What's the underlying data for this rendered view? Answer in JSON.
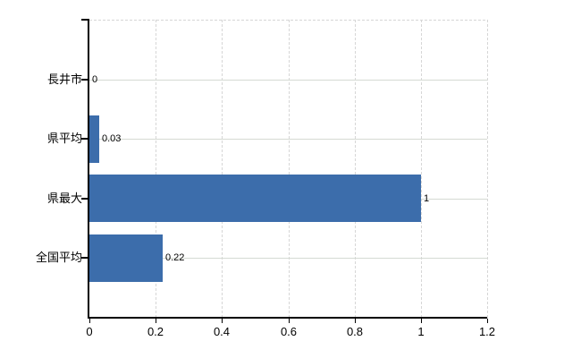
{
  "chart_data": {
    "type": "bar",
    "orientation": "horizontal",
    "title": "",
    "xlabel": "",
    "ylabel": "",
    "categories": [
      "長井市",
      "県平均",
      "県最大",
      "全国平均"
    ],
    "values": [
      0,
      0.03,
      1,
      0.22
    ],
    "value_labels": [
      "0",
      "0.03",
      "1",
      "0.22"
    ],
    "xlim": [
      0,
      1.2
    ],
    "xticks": [
      0,
      0.2,
      0.4,
      0.6,
      0.8,
      1,
      1.2
    ],
    "xtick_labels": [
      "0",
      "0.2",
      "0.4",
      "0.6",
      "0.8",
      "1",
      "1.2"
    ],
    "grid": "on",
    "legend": "none",
    "colors": {
      "bar": "#3c6dab",
      "vertical_grid": "#d6d6d6",
      "horizontal_grid": "#d5dad3",
      "axis": "#000000",
      "text": "#000000",
      "background": "#ffffff"
    }
  }
}
